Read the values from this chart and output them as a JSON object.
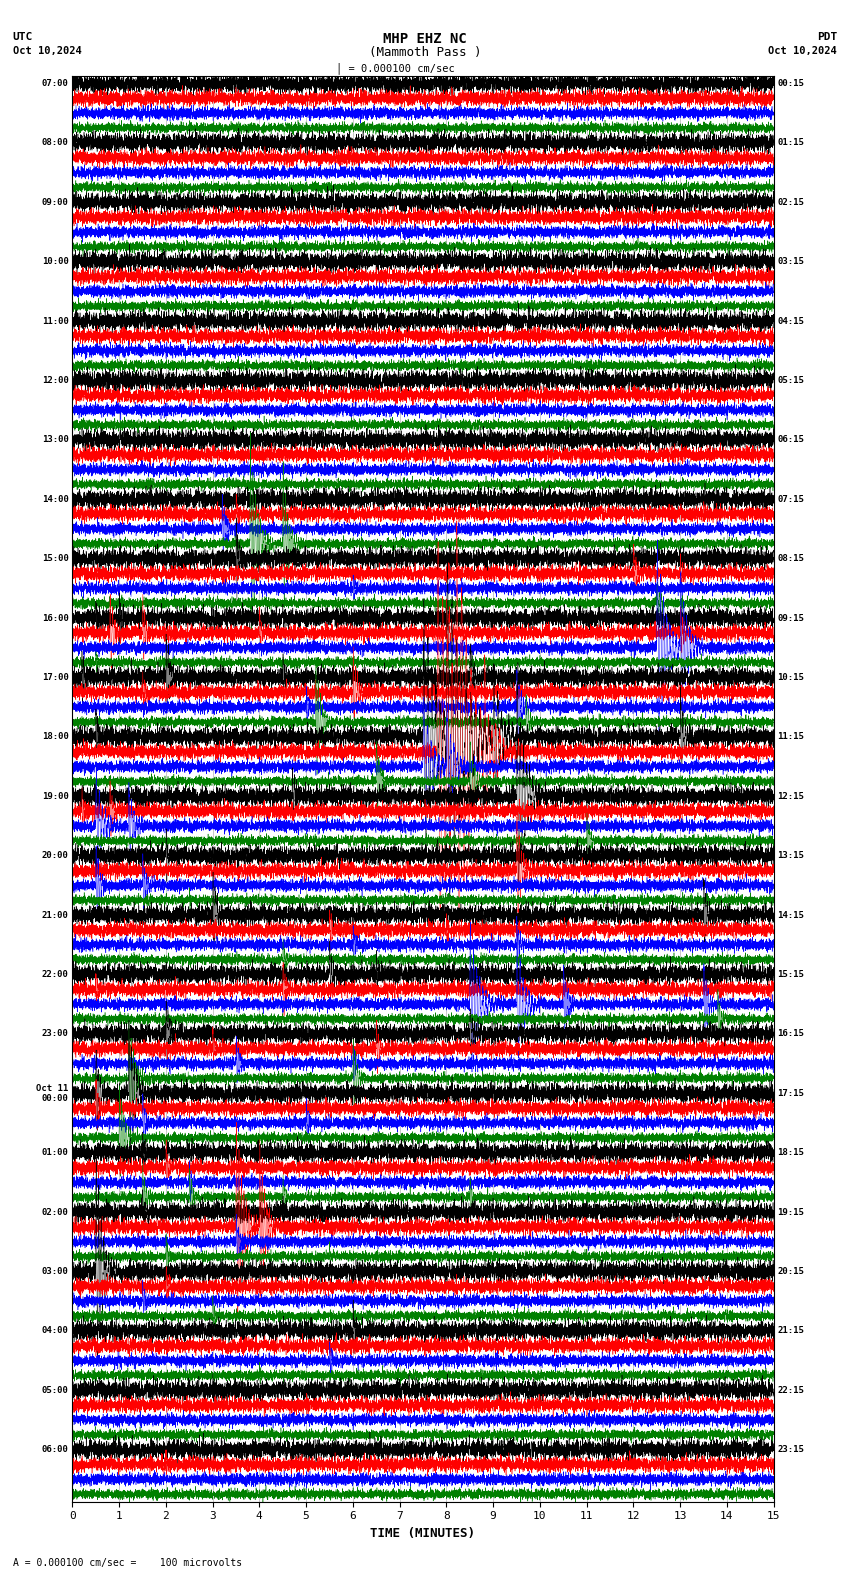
{
  "title_line1": "MHP EHZ NC",
  "title_line2": "(Mammoth Pass )",
  "scale_text": "= 0.000100 cm/sec",
  "footer_text": "= 0.000100 cm/sec =    100 microvolts",
  "utc_label": "UTC",
  "utc_date": "Oct 10,2024",
  "pdt_label": "PDT",
  "pdt_date": "Oct 10,2024",
  "xlabel": "TIME (MINUTES)",
  "left_times": [
    "07:00",
    "08:00",
    "09:00",
    "10:00",
    "11:00",
    "12:00",
    "13:00",
    "14:00",
    "15:00",
    "16:00",
    "17:00",
    "18:00",
    "19:00",
    "20:00",
    "21:00",
    "22:00",
    "23:00",
    "Oct 11\n00:00",
    "01:00",
    "02:00",
    "03:00",
    "04:00",
    "05:00",
    "06:00"
  ],
  "right_times": [
    "00:15",
    "01:15",
    "02:15",
    "03:15",
    "04:15",
    "05:15",
    "06:15",
    "07:15",
    "08:15",
    "09:15",
    "10:15",
    "11:15",
    "12:15",
    "13:15",
    "14:15",
    "15:15",
    "16:15",
    "17:15",
    "18:15",
    "19:15",
    "20:15",
    "21:15",
    "22:15",
    "23:15"
  ],
  "n_rows": 24,
  "n_traces": 4,
  "colors": [
    "black",
    "red",
    "blue",
    "green"
  ],
  "x_min": 0,
  "x_max": 15,
  "x_ticks": [
    0,
    1,
    2,
    3,
    4,
    5,
    6,
    7,
    8,
    9,
    10,
    11,
    12,
    13,
    14,
    15
  ],
  "bg_color": "white",
  "seed": 42
}
